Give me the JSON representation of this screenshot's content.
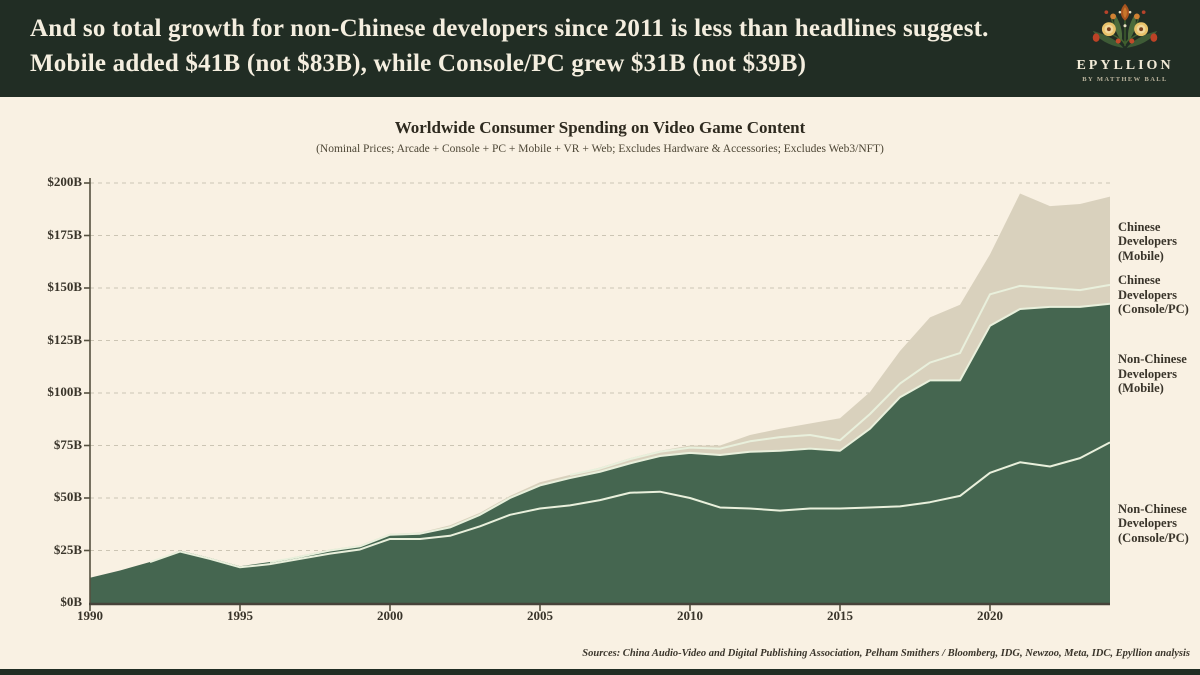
{
  "header": {
    "headline": "And so total growth for non-Chinese developers since 2011 is less than headlines suggest. Mobile added $41B (not $83B), while Console/PC grew $31B (not $39B)",
    "logo": {
      "title": "EPYLLION",
      "subtitle": "BY MATTHEW BALL",
      "icon": "floral-bouquet-icon"
    }
  },
  "chart_data": {
    "type": "area",
    "stacked": true,
    "title": "Worldwide Consumer Spending on Video Game Content",
    "subtitle": "(Nominal Prices; Arcade + Console + PC + Mobile + VR + Web; Excludes Hardware & Accessories; Excludes Web3/NFT)",
    "source": "Sources: China Audio-Video and Digital Publishing Association, Pelham Smithers / Bloomberg, IDG, Newzoo, Meta, IDC, Epyllion analysis",
    "units": "USD billions",
    "x": [
      1990,
      1991,
      1992,
      1993,
      1994,
      1995,
      1996,
      1997,
      1998,
      1999,
      2000,
      2001,
      2002,
      2003,
      2004,
      2005,
      2006,
      2007,
      2008,
      2009,
      2010,
      2011,
      2012,
      2013,
      2014,
      2015,
      2016,
      2017,
      2018,
      2019,
      2020,
      2021,
      2022,
      2023,
      2024
    ],
    "x_tick_labels": [
      "1990",
      "1995",
      "2000",
      "2005",
      "2010",
      "2015",
      "2020"
    ],
    "y_tick_labels": [
      "$0B",
      "$25B",
      "$50B",
      "$75B",
      "$100B",
      "$125B",
      "$150B",
      "$175B",
      "$200B"
    ],
    "ylim": [
      0,
      200
    ],
    "ytick_step": 25,
    "grid": "horizontal-dashed",
    "legend_position": "right-outside",
    "separator_color": "#E9F0DC",
    "series": [
      {
        "name": "Non-Chinese Developers (Console/PC)",
        "color": "#456650",
        "values": [
          12,
          15.5,
          19.5,
          24.5,
          21,
          17,
          18.5,
          21,
          23.5,
          25.5,
          30.5,
          30.5,
          32,
          36.5,
          42,
          45,
          46.5,
          49,
          52.5,
          53,
          50,
          45.5,
          45,
          44,
          45,
          45,
          45.5,
          46,
          48,
          51,
          62,
          67,
          65,
          69,
          76.5
        ]
      },
      {
        "name": "Non-Chinese Developers (Mobile)",
        "color": "#456650",
        "values": [
          0,
          0,
          0,
          0.5,
          0.5,
          0.5,
          1,
          1,
          1.5,
          1.5,
          2,
          2.5,
          4,
          5.5,
          8,
          11,
          13,
          13.5,
          14,
          17,
          21.5,
          25,
          27,
          28.5,
          28.5,
          27.5,
          37.5,
          52,
          58,
          55,
          70,
          73,
          76,
          72,
          66
        ]
      },
      {
        "name": "Chinese Developers (Console/PC)",
        "color": "#D9D1BD",
        "values": [
          0,
          0,
          0,
          0,
          0,
          0,
          0,
          0.5,
          0.5,
          0.5,
          0.5,
          0.5,
          1,
          1,
          1,
          1.5,
          1.5,
          1.5,
          2,
          2,
          2.5,
          3,
          5,
          6.5,
          6.5,
          5,
          7,
          6.5,
          8.5,
          13,
          15,
          11,
          9,
          8,
          9
        ]
      },
      {
        "name": "Chinese Developers (Mobile)",
        "color": "#D9D1BD",
        "values": [
          0,
          0,
          0,
          0,
          0,
          0,
          0,
          0,
          0,
          0,
          0,
          0,
          0,
          0,
          0,
          0,
          0,
          0.5,
          0.5,
          0.5,
          1,
          1.5,
          3,
          4,
          5.5,
          10.5,
          10.5,
          15.5,
          21.5,
          23,
          19,
          44,
          39,
          41,
          42
        ]
      }
    ]
  }
}
